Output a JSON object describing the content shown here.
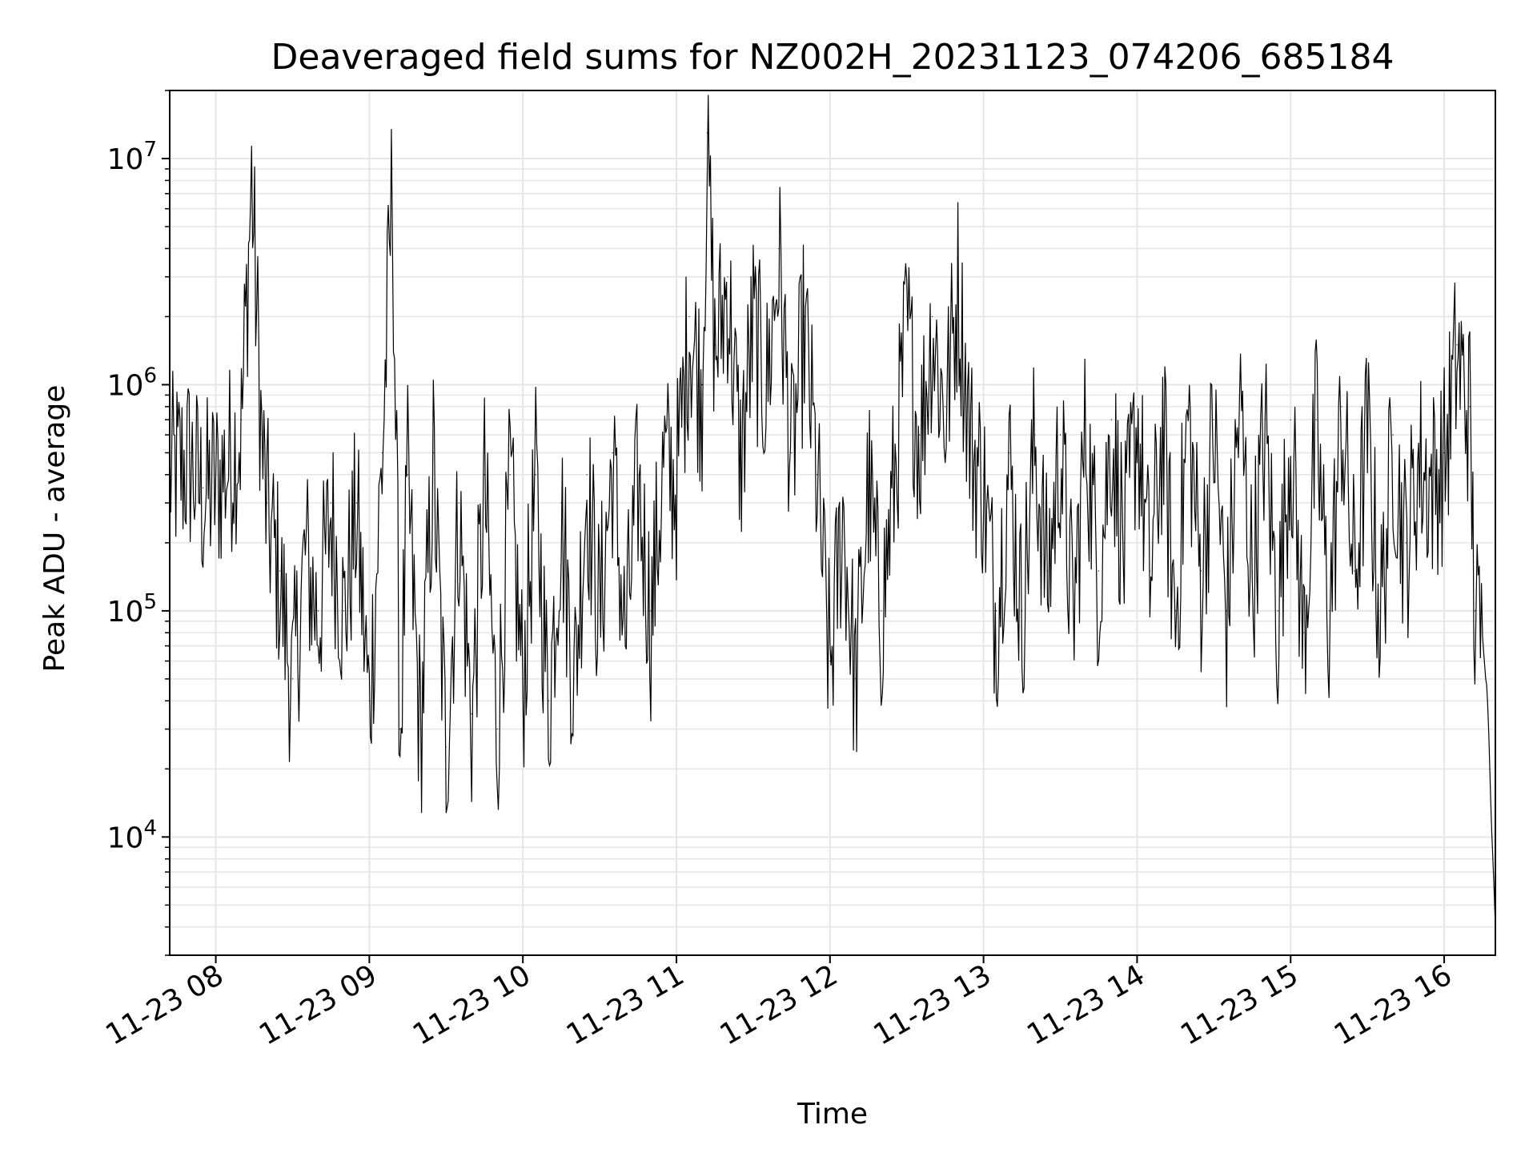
{
  "chart_data": {
    "type": "line",
    "title": "Deaveraged field sums for NZ002H_20231123_074206_685184",
    "xlabel": "Time",
    "ylabel": "Peak ADU - average",
    "yscale": "log",
    "ylim": [
      3000,
      20000000
    ],
    "xlim": [
      "2023-11-23 07:42",
      "2023-11-23 16:20"
    ],
    "grid": true,
    "line_color": "#000000",
    "grid_color": "#e6e6e6",
    "x_ticks": [
      {
        "value": "2023-11-23 08:00",
        "label": "11-23 08"
      },
      {
        "value": "2023-11-23 09:00",
        "label": "11-23 09"
      },
      {
        "value": "2023-11-23 10:00",
        "label": "11-23 10"
      },
      {
        "value": "2023-11-23 11:00",
        "label": "11-23 11"
      },
      {
        "value": "2023-11-23 12:00",
        "label": "11-23 12"
      },
      {
        "value": "2023-11-23 13:00",
        "label": "11-23 13"
      },
      {
        "value": "2023-11-23 14:00",
        "label": "11-23 14"
      },
      {
        "value": "2023-11-23 15:00",
        "label": "11-23 15"
      },
      {
        "value": "2023-11-23 16:00",
        "label": "11-23 16"
      }
    ],
    "y_ticks": [
      {
        "value": 10000,
        "base": "10",
        "exp": "4"
      },
      {
        "value": 100000,
        "base": "10",
        "exp": "5"
      },
      {
        "value": 1000000,
        "base": "10",
        "exp": "6"
      },
      {
        "value": 10000000,
        "base": "10",
        "exp": "7"
      }
    ],
    "series": [
      {
        "points": [
          [
            "2023-11-23 07:42",
            450000
          ],
          [
            "2023-11-23 07:50",
            500000
          ],
          [
            "2023-11-23 07:55",
            350000
          ],
          [
            "2023-11-23 08:00",
            400000
          ],
          [
            "2023-11-23 08:05",
            500000
          ],
          [
            "2023-11-23 08:10",
            700000
          ],
          [
            "2023-11-23 08:14",
            9000000
          ],
          [
            "2023-11-23 08:18",
            600000
          ],
          [
            "2023-11-23 08:20",
            300000
          ],
          [
            "2023-11-23 08:25",
            150000
          ],
          [
            "2023-11-23 08:30",
            50000
          ],
          [
            "2023-11-23 08:35",
            200000
          ],
          [
            "2023-11-23 08:40",
            100000
          ],
          [
            "2023-11-23 08:45",
            300000
          ],
          [
            "2023-11-23 08:50",
            100000
          ],
          [
            "2023-11-23 08:55",
            300000
          ],
          [
            "2023-11-23 09:00",
            40000
          ],
          [
            "2023-11-23 09:05",
            500000
          ],
          [
            "2023-11-23 09:09",
            9000000
          ],
          [
            "2023-11-23 09:12",
            30000
          ],
          [
            "2023-11-23 09:15",
            400000
          ],
          [
            "2023-11-23 09:20",
            30000
          ],
          [
            "2023-11-23 09:25",
            500000
          ],
          [
            "2023-11-23 09:30",
            25000
          ],
          [
            "2023-11-23 09:35",
            300000
          ],
          [
            "2023-11-23 09:40",
            35000
          ],
          [
            "2023-11-23 09:45",
            400000
          ],
          [
            "2023-11-23 09:50",
            30000
          ],
          [
            "2023-11-23 09:55",
            400000
          ],
          [
            "2023-11-23 10:00",
            50000
          ],
          [
            "2023-11-23 10:05",
            400000
          ],
          [
            "2023-11-23 10:10",
            40000
          ],
          [
            "2023-11-23 10:15",
            300000
          ],
          [
            "2023-11-23 10:20",
            50000
          ],
          [
            "2023-11-23 10:25",
            400000
          ],
          [
            "2023-11-23 10:30",
            100000
          ],
          [
            "2023-11-23 10:35",
            500000
          ],
          [
            "2023-11-23 10:40",
            80000
          ],
          [
            "2023-11-23 10:45",
            400000
          ],
          [
            "2023-11-23 10:50",
            100000
          ],
          [
            "2023-11-23 10:55",
            500000
          ],
          [
            "2023-11-23 11:00",
            400000
          ],
          [
            "2023-11-23 11:05",
            2000000
          ],
          [
            "2023-11-23 11:10",
            1000000
          ],
          [
            "2023-11-23 11:12",
            13000000
          ],
          [
            "2023-11-23 11:15",
            1500000
          ],
          [
            "2023-11-23 11:20",
            3000000
          ],
          [
            "2023-11-23 11:25",
            500000
          ],
          [
            "2023-11-23 11:30",
            2000000
          ],
          [
            "2023-11-23 11:35",
            1000000
          ],
          [
            "2023-11-23 11:40",
            4000000
          ],
          [
            "2023-11-23 11:45",
            500000
          ],
          [
            "2023-11-23 11:50",
            2000000
          ],
          [
            "2023-11-23 11:55",
            400000
          ],
          [
            "2023-11-23 12:00",
            60000
          ],
          [
            "2023-11-23 12:05",
            300000
          ],
          [
            "2023-11-23 12:10",
            50000
          ],
          [
            "2023-11-23 12:15",
            400000
          ],
          [
            "2023-11-23 12:20",
            100000
          ],
          [
            "2023-11-23 12:25",
            400000
          ],
          [
            "2023-11-23 12:30",
            2000000
          ],
          [
            "2023-11-23 12:35",
            600000
          ],
          [
            "2023-11-23 12:40",
            2000000
          ],
          [
            "2023-11-23 12:45",
            800000
          ],
          [
            "2023-11-23 12:50",
            3000000
          ],
          [
            "2023-11-23 12:55",
            600000
          ],
          [
            "2023-11-23 13:00",
            400000
          ],
          [
            "2023-11-23 13:05",
            100000
          ],
          [
            "2023-11-23 13:10",
            500000
          ],
          [
            "2023-11-23 13:15",
            100000
          ],
          [
            "2023-11-23 13:20",
            600000
          ],
          [
            "2023-11-23 13:25",
            150000
          ],
          [
            "2023-11-23 13:30",
            600000
          ],
          [
            "2023-11-23 13:35",
            100000
          ],
          [
            "2023-11-23 13:40",
            700000
          ],
          [
            "2023-11-23 13:45",
            150000
          ],
          [
            "2023-11-23 13:50",
            700000
          ],
          [
            "2023-11-23 13:55",
            200000
          ],
          [
            "2023-11-23 14:00",
            800000
          ],
          [
            "2023-11-23 14:05",
            150000
          ],
          [
            "2023-11-23 14:10",
            700000
          ],
          [
            "2023-11-23 14:15",
            100000
          ],
          [
            "2023-11-23 14:20",
            800000
          ],
          [
            "2023-11-23 14:25",
            150000
          ],
          [
            "2023-11-23 14:30",
            700000
          ],
          [
            "2023-11-23 14:35",
            100000
          ],
          [
            "2023-11-23 14:40",
            900000
          ],
          [
            "2023-11-23 14:45",
            150000
          ],
          [
            "2023-11-23 14:50",
            700000
          ],
          [
            "2023-11-23 14:55",
            100000
          ],
          [
            "2023-11-23 15:00",
            700000
          ],
          [
            "2023-11-23 15:05",
            80000
          ],
          [
            "2023-11-23 15:10",
            700000
          ],
          [
            "2023-11-23 15:15",
            100000
          ],
          [
            "2023-11-23 15:20",
            800000
          ],
          [
            "2023-11-23 15:25",
            150000
          ],
          [
            "2023-11-23 15:30",
            700000
          ],
          [
            "2023-11-23 15:35",
            100000
          ],
          [
            "2023-11-23 15:40",
            600000
          ],
          [
            "2023-11-23 15:45",
            200000
          ],
          [
            "2023-11-23 15:50",
            500000
          ],
          [
            "2023-11-23 15:55",
            400000
          ],
          [
            "2023-11-23 16:00",
            500000
          ],
          [
            "2023-11-23 16:05",
            1500000
          ],
          [
            "2023-11-23 16:10",
            800000
          ],
          [
            "2023-11-23 16:12",
            100000
          ],
          [
            "2023-11-23 16:15",
            80000
          ],
          [
            "2023-11-23 16:17",
            40000
          ],
          [
            "2023-11-23 16:19",
            8000
          ],
          [
            "2023-11-23 16:20",
            4000
          ]
        ]
      }
    ]
  }
}
